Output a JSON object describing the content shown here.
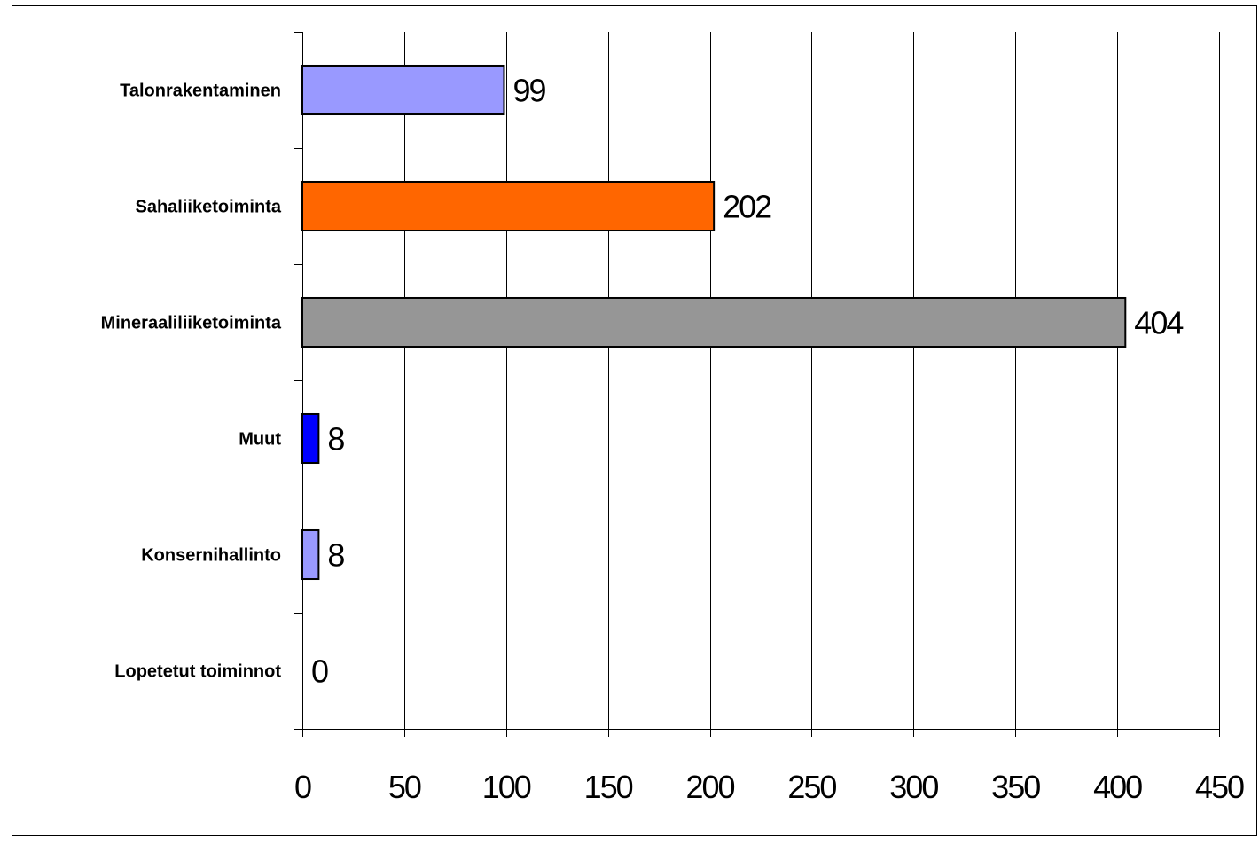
{
  "chart_data": {
    "type": "bar",
    "orientation": "horizontal",
    "categories": [
      "Talonrakentaminen",
      "Sahaliiketoiminta",
      "Mineraaliliiketoiminta",
      "Muut",
      "Konsernihallinto",
      "Lopetetut toiminnot"
    ],
    "values": [
      99,
      202,
      404,
      8,
      8,
      0
    ],
    "data_labels": [
      "99",
      "202",
      "404",
      "8",
      "8",
      "0"
    ],
    "bar_colors": [
      "#9999ff",
      "#ff6600",
      "#969696",
      "#0000ff",
      "#9999ff",
      "#9999ff"
    ],
    "xlim": [
      0,
      450
    ],
    "xticks": [
      0,
      50,
      100,
      150,
      200,
      250,
      300,
      350,
      400,
      450
    ],
    "xtick_labels": [
      "0",
      "50",
      "100",
      "150",
      "200",
      "250",
      "300",
      "350",
      "400",
      "450"
    ],
    "grid": "vertical",
    "legend": "none",
    "title": "",
    "xlabel": "",
    "ylabel": ""
  }
}
